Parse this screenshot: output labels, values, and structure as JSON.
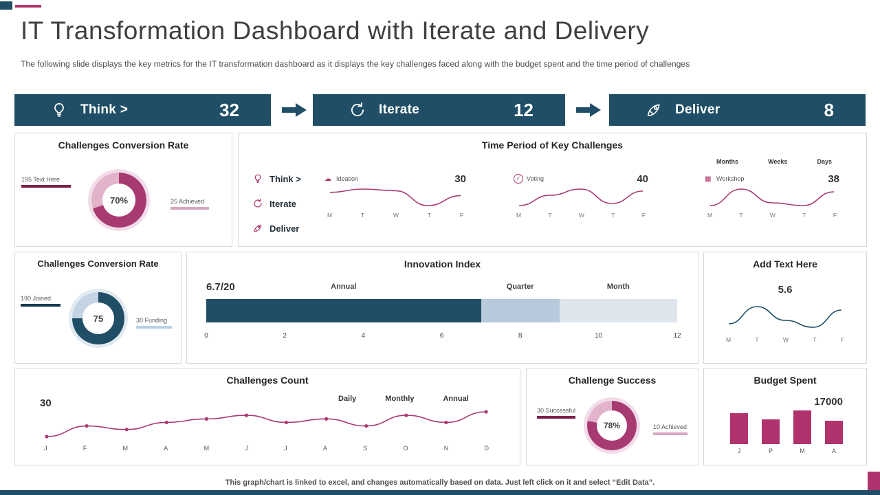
{
  "slide": {
    "title": "IT Transformation Dashboard with Iterate and Delivery",
    "subtitle": "The following slide displays the key metrics for the IT transformation dashboard as it displays the key challenges faced along with the budget spent and the time period of challenges",
    "footer": "This graph/chart is linked to excel, and changes automatically based on data. Just left click on it and select “Edit Data”.",
    "accent_pink": "#b0336d",
    "accent_navy": "#1f4e66"
  },
  "banners": [
    {
      "label": "Think >",
      "value": "32",
      "icon": "lightbulb-icon"
    },
    {
      "label": "Iterate",
      "value": "12",
      "icon": "iterate-icon"
    },
    {
      "label": "Deliver",
      "value": "8",
      "icon": "rocket-icon"
    }
  ],
  "panels": {
    "conversion_top": {
      "title": "Challenges Conversion Rate"
    },
    "time_period": {
      "title": "Time Period of Key Challenges",
      "columns": [
        "Months",
        "Weeks",
        "Days"
      ],
      "legend": [
        {
          "label": "Think >",
          "icon": "lightbulb-icon"
        },
        {
          "label": "Iterate",
          "icon": "iterate-icon"
        },
        {
          "label": "Deliver",
          "icon": "rocket-icon"
        }
      ]
    },
    "conversion_mid": {
      "title": "Challenges Conversion Rate"
    },
    "innovation": {
      "title": "Innovation Index"
    },
    "add_text": {
      "title": "Add Text Here"
    },
    "challenges_count": {
      "title": "Challenges Count"
    },
    "challenge_success": {
      "title": "Challenge Success"
    },
    "budget": {
      "title": "Budget Spent"
    }
  },
  "chart_data": [
    {
      "id": "donut-conversion-top",
      "type": "pie",
      "center_label": "70%",
      "values": [
        70,
        30
      ],
      "colors": [
        "#a83a72",
        "#e3b3cc"
      ],
      "ring_color": "#f1dce8",
      "callouts": [
        {
          "text": "195 Text Here",
          "bar_color": "#7e2149"
        },
        {
          "text": "25 Achieved",
          "bar_color": "#d9a6c2"
        }
      ]
    },
    {
      "id": "spark-ideation",
      "type": "line",
      "title": "Ideation",
      "value_label": "30",
      "color": "#a83a72",
      "x": [
        "M",
        "T",
        "W",
        "T",
        "F"
      ],
      "values": [
        29,
        31,
        30,
        21,
        27
      ]
    },
    {
      "id": "spark-voting",
      "type": "line",
      "title": "Voting",
      "value_label": "40",
      "color": "#a83a72",
      "x": [
        "M",
        "T",
        "W",
        "T",
        "F"
      ],
      "values": [
        33,
        38,
        41,
        34,
        40
      ]
    },
    {
      "id": "spark-workshop",
      "type": "line",
      "title": "Workshop",
      "value_label": "38",
      "color": "#a83a72",
      "x": [
        "M",
        "T",
        "W",
        "T",
        "F"
      ],
      "values": [
        33,
        39,
        34,
        33,
        38
      ]
    },
    {
      "id": "donut-conversion-mid",
      "type": "pie",
      "center_label": "75",
      "values": [
        75,
        25
      ],
      "colors": [
        "#1f4e66",
        "#c4d4e4"
      ],
      "ring_color": "#e2eaf2",
      "callouts": [
        {
          "text": "190 Joined",
          "bar_color": "#163a52"
        },
        {
          "text": "30 Funding",
          "bar_color": "#b9cfe2"
        }
      ]
    },
    {
      "id": "innovation-index",
      "type": "stacked-bar",
      "value_label": "6.7/20",
      "axis": {
        "min": 0,
        "max": 12,
        "step": 2
      },
      "segments": [
        {
          "label": "Annual",
          "from": 0,
          "to": 7,
          "color": "#1f4e66"
        },
        {
          "label": "Quarter",
          "from": 7,
          "to": 9,
          "color": "#b7c9da"
        },
        {
          "label": "Month",
          "from": 9,
          "to": 12,
          "color": "#dfe5ec"
        }
      ]
    },
    {
      "id": "spark-add-text",
      "type": "line",
      "value_label": "5.6",
      "color": "#1f4e66",
      "x": [
        "M",
        "T",
        "W",
        "T",
        "F"
      ],
      "values": [
        4.6,
        5.6,
        4.8,
        4.4,
        5.4
      ]
    },
    {
      "id": "challenges-count",
      "type": "line",
      "value_label": "30",
      "markers": true,
      "color": "#a83a72",
      "legend": [
        "Daily",
        "Monthly",
        "Annual"
      ],
      "x": [
        "J",
        "F",
        "M",
        "A",
        "M",
        "J",
        "J",
        "A",
        "S",
        "O",
        "N",
        "D"
      ],
      "values": [
        24,
        27,
        26,
        28,
        29,
        30,
        28,
        29,
        27,
        30,
        28,
        31
      ]
    },
    {
      "id": "donut-success",
      "type": "pie",
      "center_label": "78%",
      "values": [
        78,
        22
      ],
      "colors": [
        "#a83a72",
        "#e3b3cc"
      ],
      "ring_color": "#f1dce8",
      "callouts": [
        {
          "text": "30 Successful",
          "bar_color": "#7e2149"
        },
        {
          "text": "10 Achieved",
          "bar_color": "#d9a6c2"
        }
      ]
    },
    {
      "id": "budget-bars",
      "type": "bar",
      "value_label": "17000",
      "color": "#b0336d",
      "categories": [
        "J",
        "P",
        "M",
        "A"
      ],
      "values": [
        14000,
        11000,
        15000,
        10500
      ],
      "max": 16000
    }
  ]
}
